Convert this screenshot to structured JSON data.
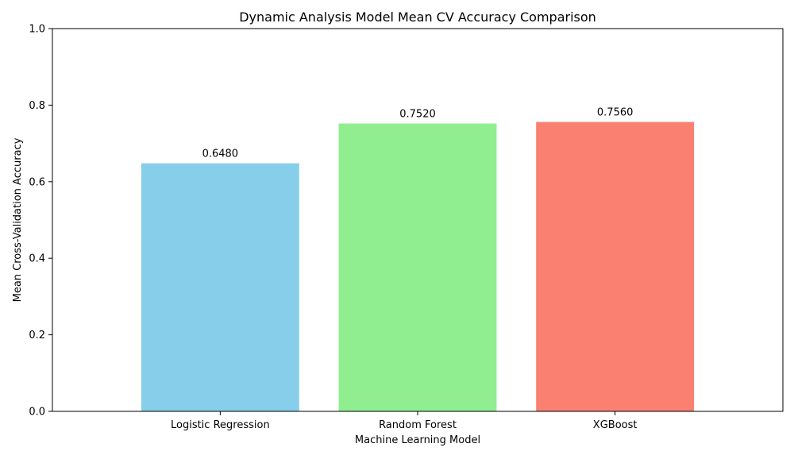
{
  "chart_data": {
    "type": "bar",
    "title": "Dynamic Analysis Model Mean CV Accuracy Comparison",
    "xlabel": "Machine Learning Model",
    "ylabel": "Mean Cross-Validation Accuracy",
    "categories": [
      "Logistic Regression",
      "Random Forest",
      "XGBoost"
    ],
    "values": [
      0.648,
      0.752,
      0.756
    ],
    "value_labels": [
      "0.6480",
      "0.7520",
      "0.7560"
    ],
    "colors": [
      "#87CEEB",
      "#90EE90",
      "#FA8072"
    ],
    "ylim": [
      0,
      1
    ],
    "yticks": [
      0.0,
      0.2,
      0.4,
      0.6,
      0.8,
      1.0
    ],
    "ytick_labels": [
      "0.0",
      "0.2",
      "0.4",
      "0.6",
      "0.8",
      "1.0"
    ],
    "grid": false,
    "legend": "none"
  }
}
